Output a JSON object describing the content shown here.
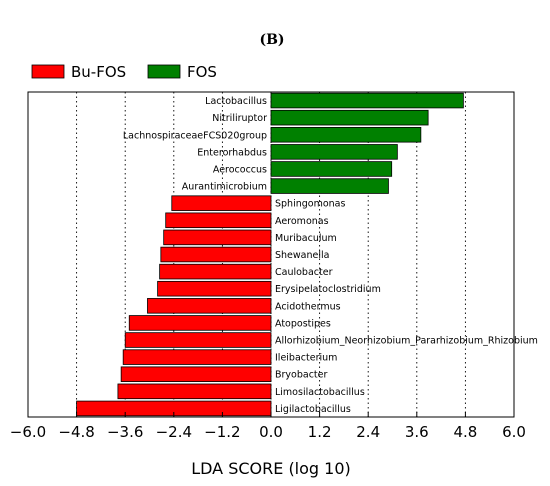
{
  "panel_label": "(B)",
  "colors": {
    "Bu-FOS": "#ff0000",
    "FOS": "#008000"
  },
  "chart_data": {
    "type": "bar",
    "orientation": "horizontal",
    "panel_label": "(B)",
    "xlabel": "LDA SCORE (log 10)",
    "xlim": [
      -6.0,
      6.0
    ],
    "xticks": [
      -6.0,
      -4.8,
      -3.6,
      -2.4,
      -1.2,
      0.0,
      1.2,
      2.4,
      3.6,
      4.8,
      6.0
    ],
    "xtick_labels": [
      "−6.0",
      "−4.8",
      "−3.6",
      "−2.4",
      "−1.2",
      "0.0",
      "1.2",
      "2.4",
      "3.6",
      "4.8",
      "6.0"
    ],
    "grid": "vertical-dotted",
    "legend": {
      "position": "top-left",
      "entries": [
        "Bu-FOS",
        "FOS"
      ]
    },
    "bars": [
      {
        "label": "Lactobacillus",
        "group": "FOS",
        "value": 4.75
      },
      {
        "label": "Nitriliruptor",
        "group": "FOS",
        "value": 3.88
      },
      {
        "label": "LachnospiraceaeFCS020group",
        "group": "FOS",
        "value": 3.7
      },
      {
        "label": "Enterorhabdus",
        "group": "FOS",
        "value": 3.12
      },
      {
        "label": "Aerococcus",
        "group": "FOS",
        "value": 2.98
      },
      {
        "label": "Aurantimicrobium",
        "group": "FOS",
        "value": 2.9
      },
      {
        "label": "Sphingomonas",
        "group": "Bu-FOS",
        "value": -2.45
      },
      {
        "label": "Aeromonas",
        "group": "Bu-FOS",
        "value": -2.6
      },
      {
        "label": "Muribaculum",
        "group": "Bu-FOS",
        "value": -2.65
      },
      {
        "label": "Shewanella",
        "group": "Bu-FOS",
        "value": -2.72
      },
      {
        "label": "Caulobacter",
        "group": "Bu-FOS",
        "value": -2.75
      },
      {
        "label": "Erysipelatoclostridium",
        "group": "Bu-FOS",
        "value": -2.8
      },
      {
        "label": "Acidothermus",
        "group": "Bu-FOS",
        "value": -3.05
      },
      {
        "label": "Atopostipes",
        "group": "Bu-FOS",
        "value": -3.5
      },
      {
        "label": "Allorhizobium_Neorhizobium_Pararhizobium_Rhizobium",
        "group": "Bu-FOS",
        "value": -3.6
      },
      {
        "label": "Ileibacterium",
        "group": "Bu-FOS",
        "value": -3.65
      },
      {
        "label": "Bryobacter",
        "group": "Bu-FOS",
        "value": -3.7
      },
      {
        "label": "Limosilactobacillus",
        "group": "Bu-FOS",
        "value": -3.78
      },
      {
        "label": "Ligilactobacillus",
        "group": "Bu-FOS",
        "value": -4.8
      }
    ]
  }
}
